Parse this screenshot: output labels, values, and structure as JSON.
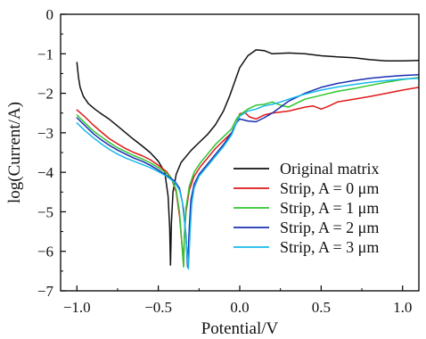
{
  "chart_data": {
    "type": "line",
    "title": "",
    "xlabel": "Potential/V",
    "ylabel": "log(Current/A)",
    "xlim": [
      -1.1,
      1.1
    ],
    "ylim": [
      -7,
      0
    ],
    "x_ticks": [
      -1.0,
      -0.5,
      0.0,
      0.5,
      1.0
    ],
    "x_tick_labels": [
      "−1.0",
      "−0.5",
      "0.0",
      "0.5",
      "1.0"
    ],
    "y_ticks": [
      -7,
      -6,
      -5,
      -4,
      -3,
      -2,
      -1,
      0
    ],
    "y_tick_labels": [
      "−7",
      "−6",
      "−5",
      "−4",
      "−3",
      "−2",
      "−1",
      "0"
    ],
    "grid": false,
    "legend_position": "lower-right",
    "series": [
      {
        "name": "Original matrix",
        "color": "#111111",
        "points": [
          [
            -1.0,
            -1.22
          ],
          [
            -0.99,
            -1.6
          ],
          [
            -0.98,
            -1.85
          ],
          [
            -0.96,
            -2.08
          ],
          [
            -0.93,
            -2.26
          ],
          [
            -0.89,
            -2.4
          ],
          [
            -0.85,
            -2.52
          ],
          [
            -0.8,
            -2.66
          ],
          [
            -0.75,
            -2.83
          ],
          [
            -0.7,
            -3.0
          ],
          [
            -0.65,
            -3.17
          ],
          [
            -0.6,
            -3.33
          ],
          [
            -0.55,
            -3.5
          ],
          [
            -0.5,
            -3.72
          ],
          [
            -0.46,
            -4.0
          ],
          [
            -0.44,
            -4.6
          ],
          [
            -0.43,
            -5.4
          ],
          [
            -0.425,
            -6.35
          ],
          [
            -0.42,
            -5.3
          ],
          [
            -0.41,
            -4.5
          ],
          [
            -0.39,
            -4.05
          ],
          [
            -0.36,
            -3.75
          ],
          [
            -0.3,
            -3.45
          ],
          [
            -0.25,
            -3.25
          ],
          [
            -0.2,
            -3.05
          ],
          [
            -0.15,
            -2.8
          ],
          [
            -0.1,
            -2.45
          ],
          [
            -0.06,
            -2.05
          ],
          [
            -0.03,
            -1.7
          ],
          [
            0.0,
            -1.35
          ],
          [
            0.05,
            -1.05
          ],
          [
            0.1,
            -0.9
          ],
          [
            0.15,
            -0.92
          ],
          [
            0.2,
            -1.0
          ],
          [
            0.3,
            -0.98
          ],
          [
            0.4,
            -1.0
          ],
          [
            0.5,
            -1.05
          ],
          [
            0.6,
            -1.08
          ],
          [
            0.7,
            -1.1
          ],
          [
            0.8,
            -1.15
          ],
          [
            0.9,
            -1.18
          ],
          [
            1.0,
            -1.18
          ],
          [
            1.1,
            -1.17
          ]
        ]
      },
      {
        "name": "Strip, A = 0 μm",
        "color": "#e0191a",
        "points": [
          [
            -1.0,
            -2.42
          ],
          [
            -0.95,
            -2.6
          ],
          [
            -0.9,
            -2.8
          ],
          [
            -0.85,
            -2.98
          ],
          [
            -0.8,
            -3.15
          ],
          [
            -0.75,
            -3.28
          ],
          [
            -0.7,
            -3.4
          ],
          [
            -0.65,
            -3.5
          ],
          [
            -0.6,
            -3.58
          ],
          [
            -0.55,
            -3.68
          ],
          [
            -0.5,
            -3.82
          ],
          [
            -0.45,
            -3.98
          ],
          [
            -0.42,
            -4.15
          ],
          [
            -0.39,
            -4.5
          ],
          [
            -0.37,
            -5.1
          ],
          [
            -0.355,
            -5.8
          ],
          [
            -0.345,
            -6.35
          ],
          [
            -0.34,
            -5.6
          ],
          [
            -0.33,
            -5.0
          ],
          [
            -0.31,
            -4.45
          ],
          [
            -0.28,
            -4.1
          ],
          [
            -0.24,
            -3.85
          ],
          [
            -0.2,
            -3.65
          ],
          [
            -0.15,
            -3.4
          ],
          [
            -0.1,
            -3.2
          ],
          [
            -0.05,
            -3.0
          ],
          [
            -0.02,
            -2.75
          ],
          [
            0.0,
            -2.52
          ],
          [
            0.03,
            -2.48
          ],
          [
            0.06,
            -2.6
          ],
          [
            0.1,
            -2.65
          ],
          [
            0.15,
            -2.55
          ],
          [
            0.2,
            -2.5
          ],
          [
            0.3,
            -2.45
          ],
          [
            0.4,
            -2.35
          ],
          [
            0.45,
            -2.32
          ],
          [
            0.5,
            -2.4
          ],
          [
            0.55,
            -2.32
          ],
          [
            0.6,
            -2.22
          ],
          [
            0.7,
            -2.15
          ],
          [
            0.8,
            -2.08
          ],
          [
            0.9,
            -2.0
          ],
          [
            1.0,
            -1.92
          ],
          [
            1.1,
            -1.85
          ]
        ]
      },
      {
        "name": "Strip, A = 1 μm",
        "color": "#2fc62f",
        "points": [
          [
            -1.0,
            -2.55
          ],
          [
            -0.95,
            -2.75
          ],
          [
            -0.9,
            -2.95
          ],
          [
            -0.85,
            -3.1
          ],
          [
            -0.8,
            -3.25
          ],
          [
            -0.75,
            -3.38
          ],
          [
            -0.7,
            -3.48
          ],
          [
            -0.65,
            -3.58
          ],
          [
            -0.6,
            -3.66
          ],
          [
            -0.55,
            -3.76
          ],
          [
            -0.5,
            -3.88
          ],
          [
            -0.45,
            -4.02
          ],
          [
            -0.42,
            -4.15
          ],
          [
            -0.39,
            -4.45
          ],
          [
            -0.37,
            -5.0
          ],
          [
            -0.355,
            -5.8
          ],
          [
            -0.345,
            -6.4
          ],
          [
            -0.34,
            -5.6
          ],
          [
            -0.33,
            -4.9
          ],
          [
            -0.31,
            -4.35
          ],
          [
            -0.28,
            -4.0
          ],
          [
            -0.24,
            -3.75
          ],
          [
            -0.2,
            -3.55
          ],
          [
            -0.15,
            -3.3
          ],
          [
            -0.1,
            -3.1
          ],
          [
            -0.05,
            -2.9
          ],
          [
            -0.02,
            -2.65
          ],
          [
            0.0,
            -2.55
          ],
          [
            0.05,
            -2.4
          ],
          [
            0.1,
            -2.3
          ],
          [
            0.15,
            -2.28
          ],
          [
            0.2,
            -2.22
          ],
          [
            0.25,
            -2.3
          ],
          [
            0.3,
            -2.35
          ],
          [
            0.35,
            -2.25
          ],
          [
            0.4,
            -2.15
          ],
          [
            0.5,
            -2.05
          ],
          [
            0.6,
            -1.95
          ],
          [
            0.7,
            -1.88
          ],
          [
            0.8,
            -1.8
          ],
          [
            0.9,
            -1.72
          ],
          [
            1.0,
            -1.65
          ],
          [
            1.1,
            -1.6
          ]
        ]
      },
      {
        "name": "Strip, A = 2 μm",
        "color": "#1a2fb0",
        "points": [
          [
            -1.0,
            -2.62
          ],
          [
            -0.95,
            -2.82
          ],
          [
            -0.9,
            -3.02
          ],
          [
            -0.85,
            -3.18
          ],
          [
            -0.8,
            -3.32
          ],
          [
            -0.75,
            -3.44
          ],
          [
            -0.7,
            -3.54
          ],
          [
            -0.65,
            -3.64
          ],
          [
            -0.6,
            -3.72
          ],
          [
            -0.55,
            -3.82
          ],
          [
            -0.5,
            -3.94
          ],
          [
            -0.45,
            -4.08
          ],
          [
            -0.4,
            -4.22
          ],
          [
            -0.37,
            -4.4
          ],
          [
            -0.35,
            -4.8
          ],
          [
            -0.33,
            -5.6
          ],
          [
            -0.32,
            -6.4
          ],
          [
            -0.31,
            -5.4
          ],
          [
            -0.3,
            -4.7
          ],
          [
            -0.28,
            -4.3
          ],
          [
            -0.25,
            -4.05
          ],
          [
            -0.2,
            -3.8
          ],
          [
            -0.15,
            -3.55
          ],
          [
            -0.1,
            -3.3
          ],
          [
            -0.05,
            -3.0
          ],
          [
            -0.02,
            -2.75
          ],
          [
            0.0,
            -2.65
          ],
          [
            0.05,
            -2.7
          ],
          [
            0.1,
            -2.72
          ],
          [
            0.15,
            -2.62
          ],
          [
            0.2,
            -2.5
          ],
          [
            0.25,
            -2.35
          ],
          [
            0.3,
            -2.2
          ],
          [
            0.4,
            -2.0
          ],
          [
            0.5,
            -1.85
          ],
          [
            0.6,
            -1.75
          ],
          [
            0.7,
            -1.68
          ],
          [
            0.8,
            -1.62
          ],
          [
            0.9,
            -1.58
          ],
          [
            1.0,
            -1.55
          ],
          [
            1.1,
            -1.53
          ]
        ]
      },
      {
        "name": "Strip, A = 3 μm",
        "color": "#19b8ec",
        "points": [
          [
            -1.0,
            -2.75
          ],
          [
            -0.95,
            -2.95
          ],
          [
            -0.9,
            -3.12
          ],
          [
            -0.85,
            -3.28
          ],
          [
            -0.8,
            -3.42
          ],
          [
            -0.75,
            -3.54
          ],
          [
            -0.7,
            -3.64
          ],
          [
            -0.65,
            -3.72
          ],
          [
            -0.6,
            -3.8
          ],
          [
            -0.55,
            -3.88
          ],
          [
            -0.5,
            -3.98
          ],
          [
            -0.45,
            -4.1
          ],
          [
            -0.4,
            -4.25
          ],
          [
            -0.37,
            -4.45
          ],
          [
            -0.345,
            -4.9
          ],
          [
            -0.33,
            -5.7
          ],
          [
            -0.315,
            -6.45
          ],
          [
            -0.305,
            -5.5
          ],
          [
            -0.295,
            -4.8
          ],
          [
            -0.28,
            -4.4
          ],
          [
            -0.25,
            -4.1
          ],
          [
            -0.2,
            -3.85
          ],
          [
            -0.15,
            -3.6
          ],
          [
            -0.1,
            -3.35
          ],
          [
            -0.05,
            -3.05
          ],
          [
            -0.02,
            -2.75
          ],
          [
            0.0,
            -2.58
          ],
          [
            0.05,
            -2.45
          ],
          [
            0.1,
            -2.4
          ],
          [
            0.15,
            -2.32
          ],
          [
            0.2,
            -2.28
          ],
          [
            0.25,
            -2.22
          ],
          [
            0.3,
            -2.15
          ],
          [
            0.4,
            -2.02
          ],
          [
            0.5,
            -1.92
          ],
          [
            0.6,
            -1.84
          ],
          [
            0.7,
            -1.78
          ],
          [
            0.8,
            -1.72
          ],
          [
            0.9,
            -1.68
          ],
          [
            1.0,
            -1.64
          ],
          [
            1.1,
            -1.62
          ]
        ]
      }
    ]
  }
}
